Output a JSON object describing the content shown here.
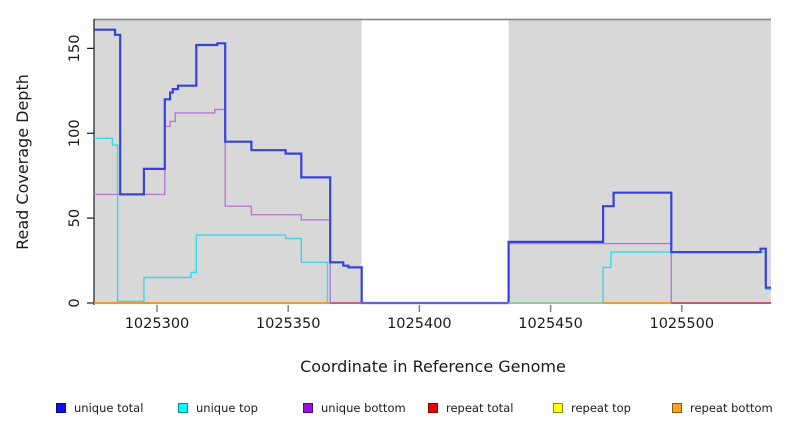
{
  "chart_data": {
    "type": "line",
    "title": "",
    "xlabel": "Coordinate in Reference Genome",
    "ylabel": "Read Coverage Depth",
    "xlim": [
      1025276,
      1025534
    ],
    "ylim": [
      0,
      167
    ],
    "x_ticks": [
      1025300,
      1025350,
      1025400,
      1025450,
      1025500
    ],
    "y_ticks": [
      0,
      50,
      100,
      150
    ],
    "grid": "off",
    "legend_position": "bottom",
    "panel_color": "#d8d8d8",
    "top_border_color": "#8a8a8a",
    "axis_color": "#1a1a1a",
    "x_tick_color": "#7a7a7a",
    "background_regions": [
      {
        "x0": 1025276,
        "x1": 1025378
      },
      {
        "x0": 1025434,
        "x1": 1025534
      }
    ],
    "gap_region": {
      "x0": 1025378,
      "x1": 1025434
    },
    "series": [
      {
        "name": "repeat total",
        "color": "#dd2222",
        "width": 1.4,
        "points": [
          [
            1025276,
            0
          ],
          [
            1025534,
            0
          ]
        ]
      },
      {
        "name": "repeat top",
        "color": "#ffee22",
        "width": 1.4,
        "points": [
          [
            1025276,
            0
          ],
          [
            1025534,
            0
          ]
        ]
      },
      {
        "name": "repeat bottom",
        "color": "#ff9122",
        "width": 1.6,
        "points": [
          [
            1025276,
            0
          ],
          [
            1025534,
            0
          ]
        ]
      },
      {
        "name": "unique top",
        "color": "#30dcec",
        "width": 1.4,
        "points": [
          [
            1025276,
            97
          ],
          [
            1025283,
            93
          ],
          [
            1025285,
            1
          ],
          [
            1025295,
            15
          ],
          [
            1025313,
            18
          ],
          [
            1025315,
            40
          ],
          [
            1025349,
            38
          ],
          [
            1025355,
            24
          ],
          [
            1025365,
            0
          ],
          [
            1025470,
            21
          ],
          [
            1025473,
            30
          ],
          [
            1025530,
            30
          ],
          [
            1025532,
            8
          ],
          [
            1025534,
            8
          ]
        ]
      },
      {
        "name": "unique bottom",
        "color": "#bb77dd",
        "width": 1.4,
        "points": [
          [
            1025276,
            64
          ],
          [
            1025303,
            104
          ],
          [
            1025305,
            107
          ],
          [
            1025307,
            112
          ],
          [
            1025322,
            114
          ],
          [
            1025326,
            57
          ],
          [
            1025336,
            52
          ],
          [
            1025355,
            49
          ],
          [
            1025366,
            0
          ],
          [
            1025434,
            35
          ],
          [
            1025496,
            0
          ],
          [
            1025534,
            0
          ]
        ]
      },
      {
        "name": "unique total",
        "color": "#3742dd",
        "width": 2.2,
        "points": [
          [
            1025276,
            161
          ],
          [
            1025284,
            158
          ],
          [
            1025286,
            64
          ],
          [
            1025295,
            79
          ],
          [
            1025303,
            120
          ],
          [
            1025305,
            124
          ],
          [
            1025306,
            126
          ],
          [
            1025308,
            128
          ],
          [
            1025315,
            152
          ],
          [
            1025323,
            153
          ],
          [
            1025326,
            95
          ],
          [
            1025336,
            90
          ],
          [
            1025349,
            88
          ],
          [
            1025355,
            74
          ],
          [
            1025366,
            24
          ],
          [
            1025371,
            22
          ],
          [
            1025373,
            21
          ],
          [
            1025378,
            0
          ],
          [
            1025434,
            36
          ],
          [
            1025470,
            57
          ],
          [
            1025474,
            65
          ],
          [
            1025496,
            30
          ],
          [
            1025530,
            32
          ],
          [
            1025532,
            9
          ],
          [
            1025534,
            9
          ]
        ]
      }
    ],
    "baseline_segments": [
      {
        "x0": 1025276,
        "x1": 1025366,
        "color": "#ff9122"
      },
      {
        "x0": 1025366,
        "x1": 1025378,
        "color": "#d0557e"
      },
      {
        "x0": 1025378,
        "x1": 1025434,
        "color": "#6e63e8"
      },
      {
        "x0": 1025434,
        "x1": 1025470,
        "color": "#8fce9a"
      },
      {
        "x0": 1025470,
        "x1": 1025496,
        "color": "#ff9122"
      },
      {
        "x0": 1025496,
        "x1": 1025534,
        "color": "#cc4870"
      }
    ]
  },
  "legend": {
    "items": [
      {
        "label": "unique total",
        "color": "#1111ee"
      },
      {
        "label": "unique top",
        "color": "#00ffff"
      },
      {
        "label": "unique bottom",
        "color": "#9911dd"
      },
      {
        "label": "repeat total",
        "color": "#ee0000"
      },
      {
        "label": "repeat top",
        "color": "#ffff00"
      },
      {
        "label": "repeat bottom",
        "color": "#ffa022"
      }
    ]
  }
}
